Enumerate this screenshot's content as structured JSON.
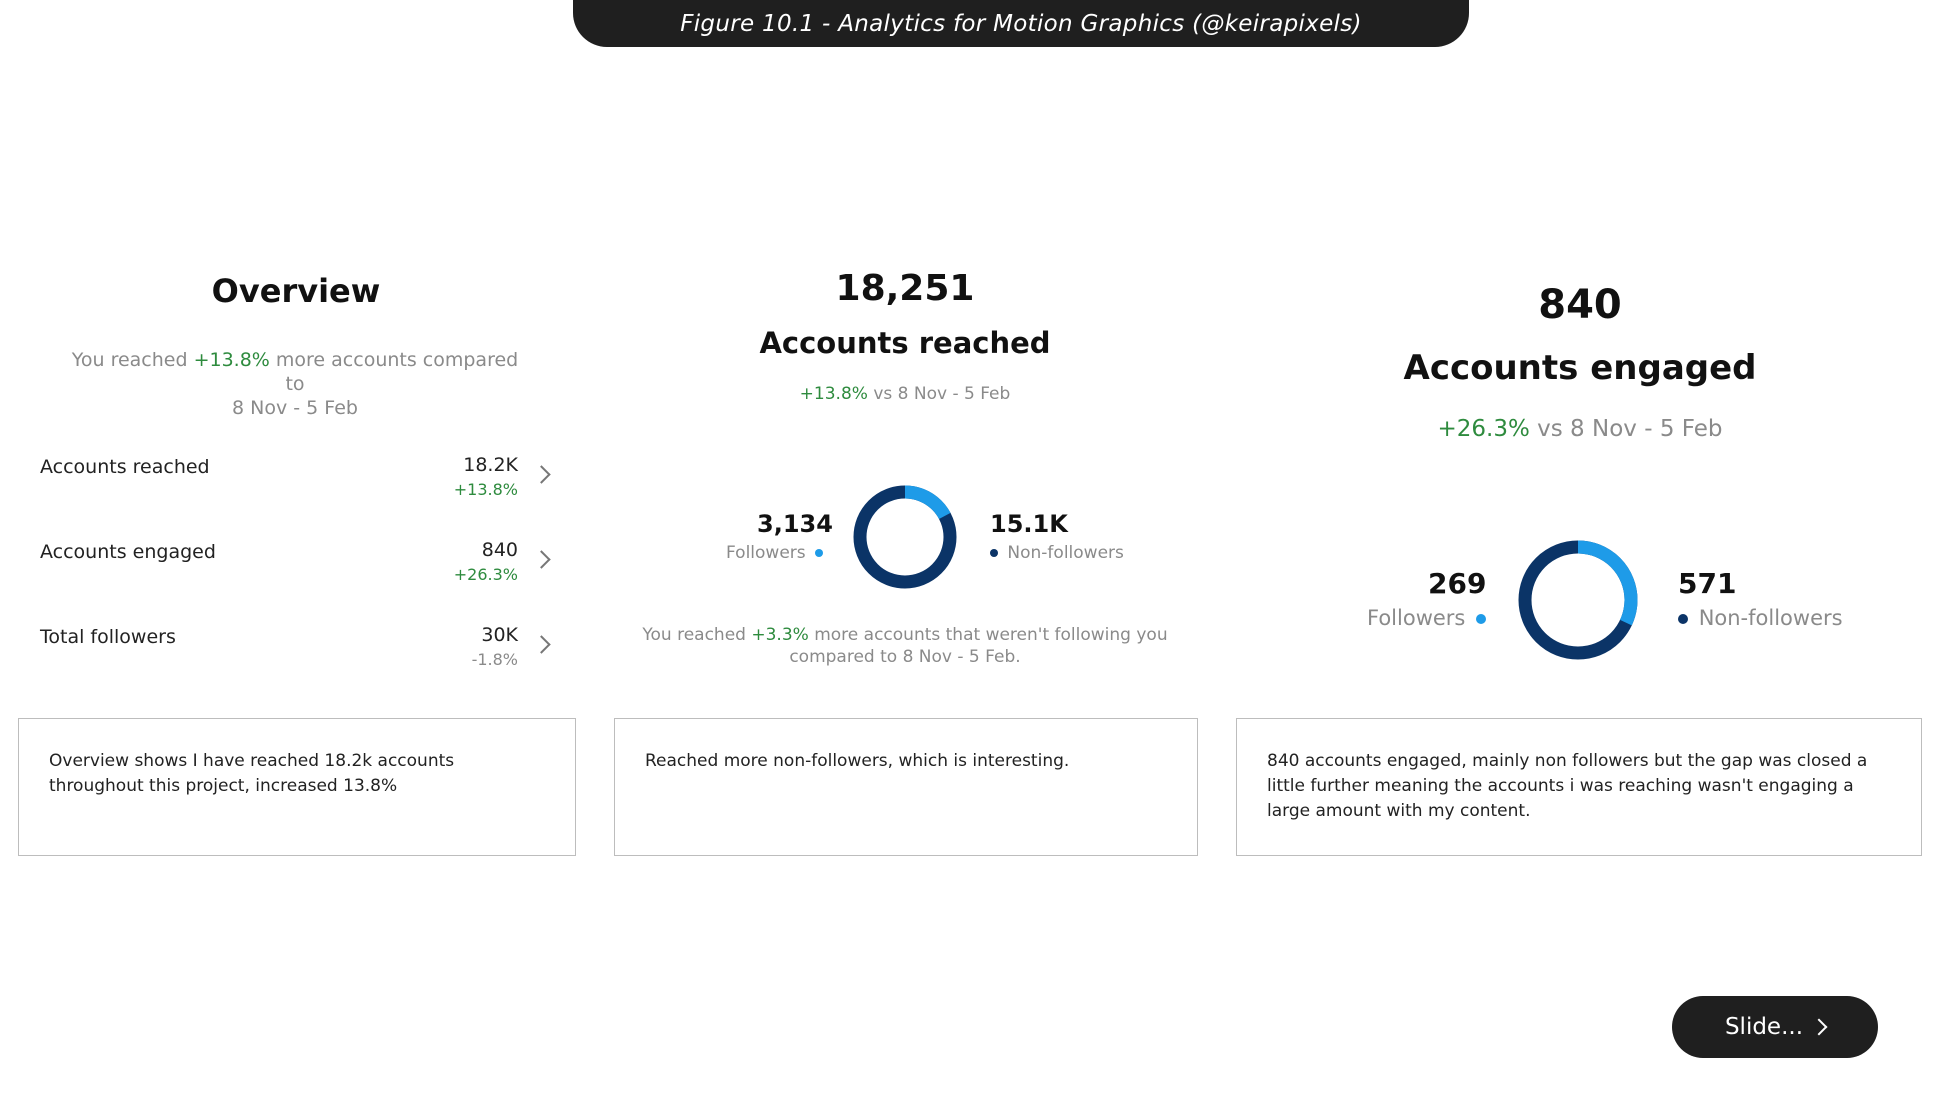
{
  "header": {
    "title": "Figure 10.1 - Analytics for Motion Graphics (@keirapixels)"
  },
  "overview": {
    "title": "Overview",
    "subtitle_pre": "You reached ",
    "subtitle_pct": "+13.8%",
    "subtitle_post": " more accounts compared to",
    "subtitle_line2": "8 Nov - 5 Feb",
    "metrics": [
      {
        "label": "Accounts reached",
        "value": "18.2K",
        "change": "+13.8%",
        "change_color": "#2e8b3e"
      },
      {
        "label": "Accounts engaged",
        "value": "840",
        "change": "+26.3%",
        "change_color": "#2e8b3e"
      },
      {
        "label": "Total followers",
        "value": "30K",
        "change": "-1.8%",
        "change_color": "#8a8a8a"
      }
    ]
  },
  "reached": {
    "number": "18,251",
    "label": "Accounts reached",
    "change": "+13.8%",
    "compare": " vs 8 Nov - 5 Feb",
    "followers_value": "3,134",
    "followers_label": "Followers",
    "nonfollowers_value": "15.1K",
    "nonfollowers_label": "Non-followers",
    "followers_share": 0.172,
    "note_pre": "You reached ",
    "note_pct": "+3.3%",
    "note_post": " more accounts that weren't following you",
    "note_line2": "compared to 8 Nov - 5 Feb."
  },
  "engaged": {
    "number": "840",
    "label": "Accounts engaged",
    "change": "+26.3%",
    "compare": " vs 8 Nov - 5 Feb",
    "followers_value": "269",
    "followers_label": "Followers",
    "nonfollowers_value": "571",
    "nonfollowers_label": "Non-followers",
    "followers_share": 0.32
  },
  "notes": [
    "Overview shows I have reached 18.2k accounts throughout this project, increased 13.8%",
    "Reached more non-followers, which is interesting.",
    "840 accounts engaged, mainly non followers but the gap was closed a little further meaning the accounts i was reaching wasn't engaging a large amount with my content."
  ],
  "slide_button": {
    "label": "Slide..."
  },
  "colors": {
    "followers": "#1e9be8",
    "non_followers": "#0b3467",
    "positive": "#2e8b3e"
  }
}
